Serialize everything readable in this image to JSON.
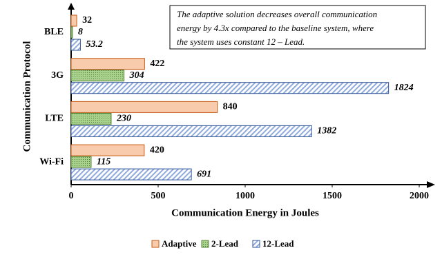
{
  "chart_data": {
    "type": "hbar",
    "annotation": [
      "The adaptive solution decreases overall communication",
      "energy by 4.3x compared to the baseline system, where",
      "the system uses constant 12 – Lead."
    ],
    "xlabel": "Communication Energy in Joules",
    "ylabel": "Communication Protocol",
    "categories": [
      "BLE",
      "3G",
      "LTE",
      "Wi-Fi"
    ],
    "series": [
      {
        "name": "Adaptive",
        "color": "#f8cbad",
        "values": [
          32,
          422,
          840,
          420
        ]
      },
      {
        "name": "2-Lead",
        "color": "#a9d18e",
        "values": [
          8,
          304,
          230,
          115
        ]
      },
      {
        "name": "12-Lead",
        "color": "#8faadc",
        "values": [
          53.2,
          1824,
          1382,
          691
        ]
      }
    ],
    "xlim": [
      0,
      2000
    ],
    "xticks": [
      0,
      500,
      1000,
      1500,
      2000
    ]
  }
}
